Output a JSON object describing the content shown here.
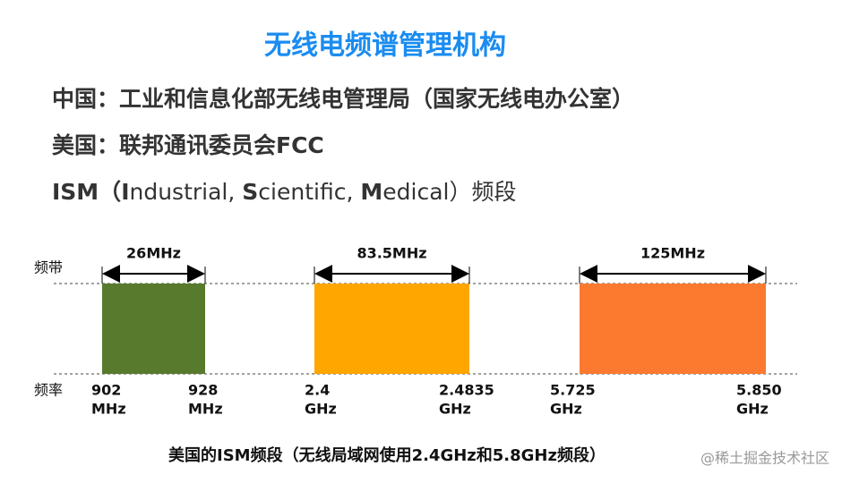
{
  "title": "无线电频谱管理机构",
  "lines": [
    [
      "中国：工业和信息化部无线电管理局（国家无线电办公室）"
    ],
    [
      "美国：联邦通讯委员会FCC"
    ],
    [
      "ISM（",
      "I",
      "ndustrial, ",
      "S",
      "cientific, ",
      "M",
      "edical）频段"
    ]
  ],
  "diagram": {
    "band_axis_label": "频带",
    "freq_axis_label": "频率",
    "bands": [
      {
        "width": "26MHz",
        "low": [
          "902",
          "MHz"
        ],
        "high": [
          "928",
          "MHz"
        ],
        "color": "#587a2c"
      },
      {
        "width": "83.5MHz",
        "low": [
          "2.4",
          "GHz"
        ],
        "high": [
          "2.4835",
          "GHz"
        ],
        "color": "#ffa600"
      },
      {
        "width": "125MHz",
        "low": [
          "5.725",
          "GHz"
        ],
        "high": [
          "5.850",
          "GHz"
        ],
        "color": "#fb7a30"
      }
    ],
    "caption": "美国的ISM频段（无线局域网使用2.4GHz和5.8GHz频段）"
  },
  "watermark": "@稀土掘金技术社区"
}
